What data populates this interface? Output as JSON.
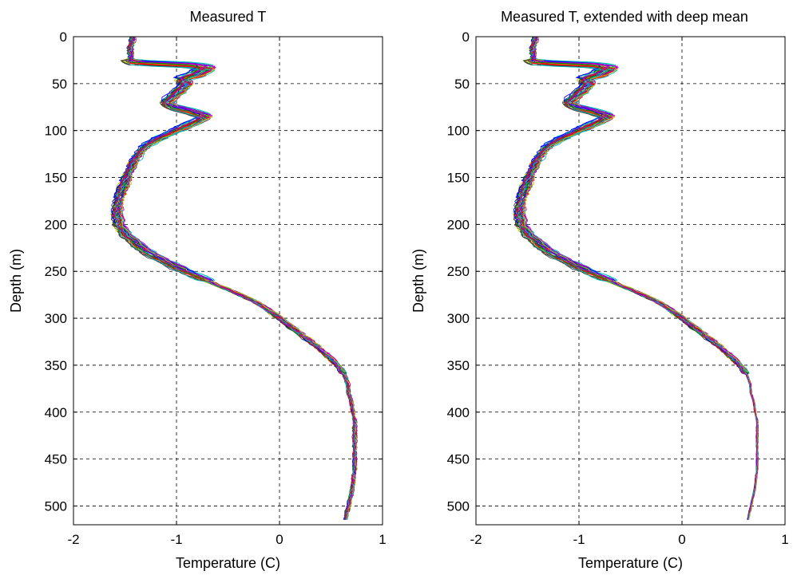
{
  "chart_data": [
    {
      "type": "line",
      "title": "Measured T",
      "xlabel": "Temperature (C)",
      "ylabel": "Depth (m)",
      "xlim": [
        -2,
        1
      ],
      "ylim": [
        0,
        520
      ],
      "y_reversed": true,
      "grid": true,
      "x_ticks": [
        -2,
        -1,
        0,
        1
      ],
      "y_ticks": [
        0,
        50,
        100,
        150,
        200,
        250,
        300,
        350,
        400,
        450,
        500
      ],
      "x_tick_labels": [
        "-2",
        "-1",
        "0",
        "1"
      ],
      "y_tick_labels": [
        "0",
        "50",
        "100",
        "150",
        "200",
        "250",
        "300",
        "350",
        "400",
        "450",
        "500"
      ],
      "depth_max": 515,
      "series_count": 40,
      "series_colors": [
        "#0000ff",
        "#008000",
        "#ff0000",
        "#00bfbf",
        "#bf00bf",
        "#bfbf00",
        "#404040"
      ],
      "mean_profile": {
        "depth": [
          0,
          5,
          10,
          15,
          20,
          25,
          28,
          30,
          33,
          36,
          40,
          45,
          50,
          55,
          60,
          65,
          70,
          75,
          80,
          85,
          90,
          95,
          100,
          105,
          110,
          115,
          120,
          130,
          140,
          150,
          160,
          170,
          180,
          190,
          200,
          210,
          220,
          230,
          240,
          250,
          260,
          270,
          280,
          290,
          300,
          310,
          320,
          330,
          340,
          350,
          360,
          370,
          380,
          390,
          400,
          410,
          420,
          430,
          440,
          450,
          460,
          470,
          480,
          490,
          500,
          510,
          515
        ],
        "temperature": [
          -1.42,
          -1.43,
          -1.44,
          -1.45,
          -1.45,
          -1.45,
          -1.4,
          -0.9,
          -0.7,
          -0.75,
          -0.8,
          -0.95,
          -0.9,
          -0.95,
          -1.0,
          -1.05,
          -1.1,
          -1.05,
          -0.85,
          -0.72,
          -0.8,
          -0.9,
          -1.0,
          -1.1,
          -1.2,
          -1.28,
          -1.33,
          -1.4,
          -1.45,
          -1.48,
          -1.52,
          -1.55,
          -1.57,
          -1.58,
          -1.56,
          -1.5,
          -1.4,
          -1.28,
          -1.1,
          -0.92,
          -0.7,
          -0.48,
          -0.28,
          -0.12,
          0.0,
          0.12,
          0.25,
          0.36,
          0.47,
          0.56,
          0.63,
          0.66,
          0.67,
          0.7,
          0.71,
          0.73,
          0.73,
          0.73,
          0.73,
          0.73,
          0.73,
          0.72,
          0.71,
          0.69,
          0.67,
          0.65,
          0.64
        ]
      }
    },
    {
      "type": "line",
      "title": "Measured T, extended with deep mean",
      "xlabel": "Temperature (C)",
      "ylabel": "Depth (m)",
      "xlim": [
        -2,
        1
      ],
      "ylim": [
        0,
        520
      ],
      "y_reversed": true,
      "grid": true,
      "x_ticks": [
        -2,
        -1,
        0,
        1
      ],
      "y_ticks": [
        0,
        50,
        100,
        150,
        200,
        250,
        300,
        350,
        400,
        450,
        500
      ],
      "x_tick_labels": [
        "-2",
        "-1",
        "0",
        "1"
      ],
      "y_tick_labels": [
        "0",
        "50",
        "100",
        "150",
        "200",
        "250",
        "300",
        "350",
        "400",
        "450",
        "500"
      ],
      "depth_max": 515,
      "series_count": 40,
      "series_colors": [
        "#0000ff",
        "#008000",
        "#ff0000",
        "#00bfbf",
        "#bf00bf",
        "#bfbf00",
        "#404040"
      ],
      "mean_profile": {
        "depth": [
          0,
          5,
          10,
          15,
          20,
          25,
          28,
          30,
          33,
          36,
          40,
          45,
          50,
          55,
          60,
          65,
          70,
          75,
          80,
          85,
          90,
          95,
          100,
          105,
          110,
          115,
          120,
          130,
          140,
          150,
          160,
          170,
          180,
          190,
          200,
          210,
          220,
          230,
          240,
          250,
          260,
          270,
          280,
          290,
          300,
          310,
          320,
          330,
          340,
          350,
          360,
          370,
          380,
          390,
          400,
          410,
          420,
          430,
          440,
          450,
          460,
          470,
          480,
          490,
          500,
          510,
          515
        ],
        "temperature": [
          -1.42,
          -1.43,
          -1.44,
          -1.45,
          -1.45,
          -1.45,
          -1.4,
          -0.9,
          -0.7,
          -0.75,
          -0.8,
          -0.95,
          -0.9,
          -0.95,
          -1.0,
          -1.05,
          -1.1,
          -1.05,
          -0.85,
          -0.72,
          -0.8,
          -0.9,
          -1.0,
          -1.1,
          -1.2,
          -1.28,
          -1.33,
          -1.4,
          -1.45,
          -1.48,
          -1.52,
          -1.55,
          -1.57,
          -1.58,
          -1.56,
          -1.5,
          -1.4,
          -1.28,
          -1.1,
          -0.92,
          -0.7,
          -0.48,
          -0.28,
          -0.12,
          0.0,
          0.12,
          0.25,
          0.36,
          0.47,
          0.56,
          0.63,
          0.66,
          0.67,
          0.7,
          0.71,
          0.73,
          0.73,
          0.73,
          0.73,
          0.73,
          0.73,
          0.72,
          0.71,
          0.69,
          0.67,
          0.65,
          0.64
        ]
      }
    }
  ]
}
